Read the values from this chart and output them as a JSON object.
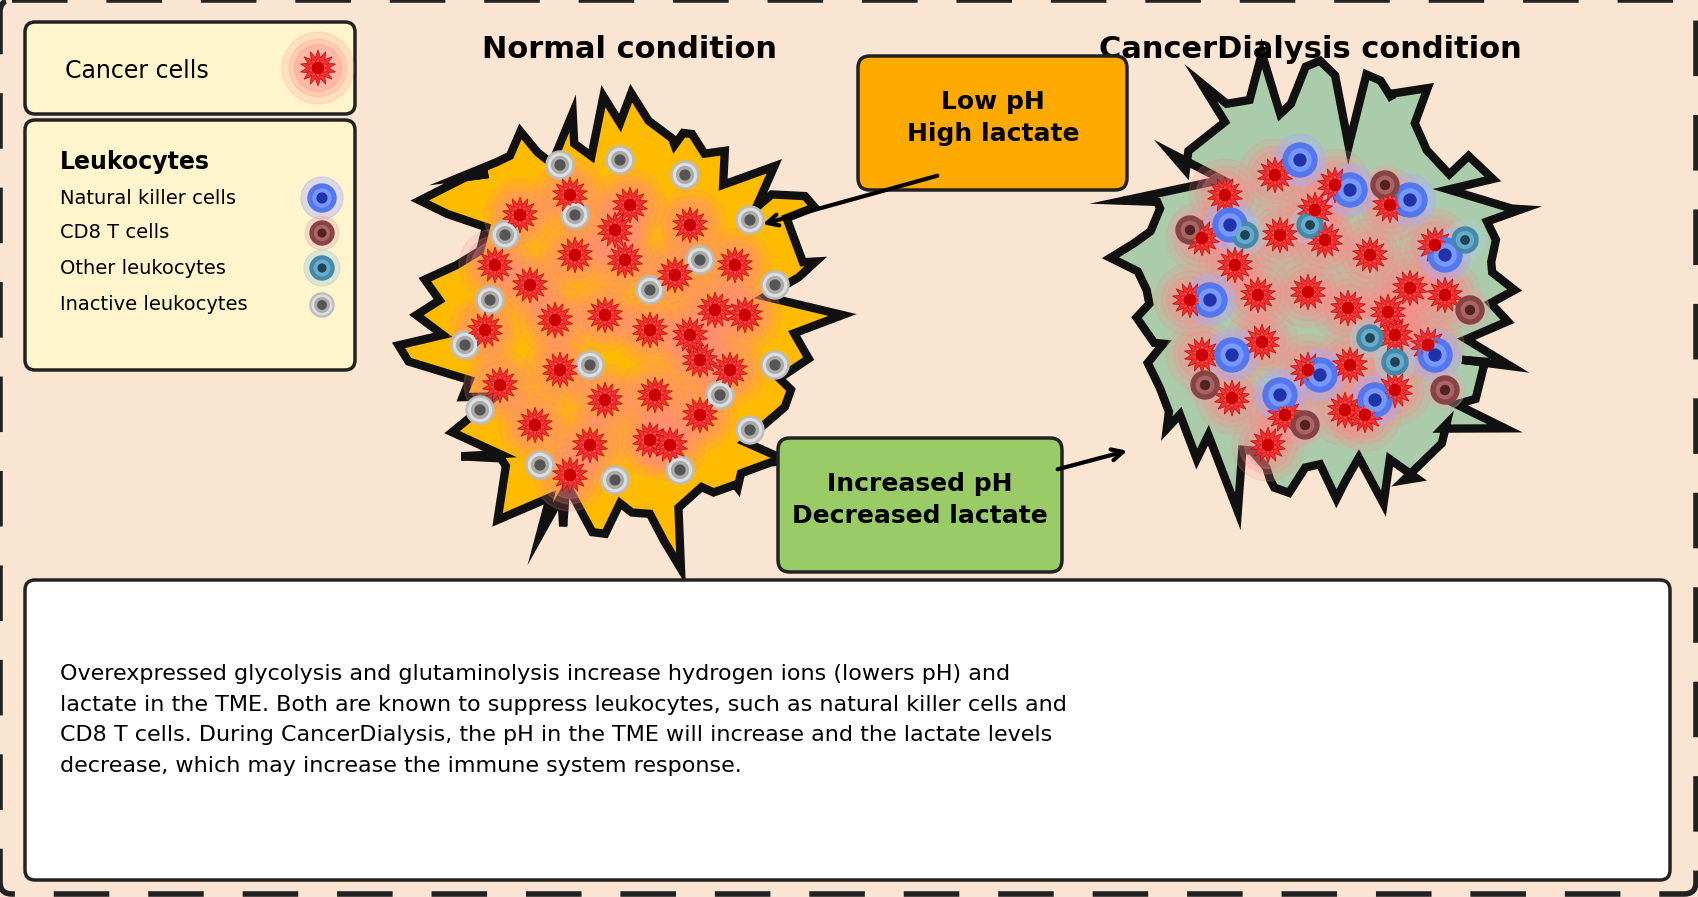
{
  "bg_color": "#FAE5D3",
  "title_normal": "Normal condition",
  "title_cancer": "CancerDialysis condition",
  "label_cancer_cells": "Cancer cells",
  "label_leukocytes": "Leukocytes",
  "legend_items": [
    "Natural killer cells",
    "CD8 T cells",
    "Other leukocytes",
    "Inactive leukocytes"
  ],
  "low_ph_text": "Low pH\nHigh lactate",
  "low_ph_color": "#FFAA00",
  "increased_ph_text": "Increased pH\nDecreased lactate",
  "increased_ph_color": "#99CC66",
  "bottom_text": "Overexpressed glycolysis and glutaminolysis increase hydrogen ions (lowers pH) and\nlactate in the TME. Both are known to suppress leukocytes, such as natural killer cells and\nCD8 T cells. During CancerDialysis, the pH in the TME will increase and the lactate levels\ndecrease, which may increase the immune system response.",
  "normal_tumor_bg": "#FFBB00",
  "cancer_dialysis_tumor_bg": "#AACCAA",
  "legend_box_bg": "#FFF5CC",
  "border_color": "#111111",
  "text_color": "#000000"
}
